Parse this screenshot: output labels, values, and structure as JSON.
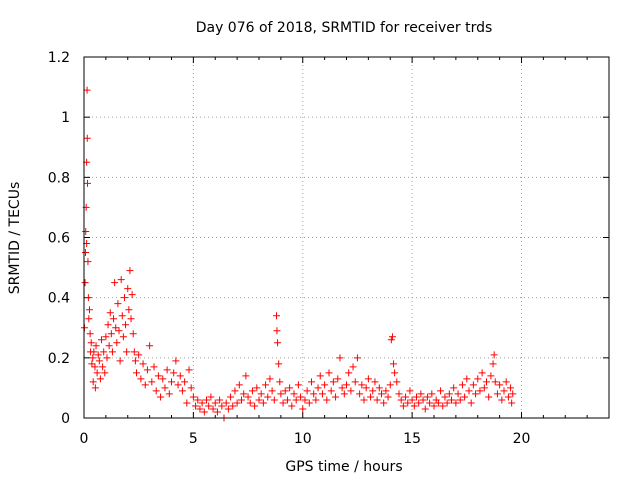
{
  "chart_data": {
    "type": "scatter",
    "title": "Day 076 of 2018, SRMTID for receiver trds",
    "xlabel": "GPS time / hours",
    "ylabel": "SRMTID / TECUs",
    "xlim": [
      0,
      24
    ],
    "ylim": [
      0,
      1.2
    ],
    "xticks": [
      0,
      5,
      10,
      15,
      20
    ],
    "xtick_labels": [
      "0",
      "5",
      "10",
      "15",
      "20"
    ],
    "yticks": [
      0,
      0.2,
      0.4,
      0.6,
      0.8,
      1.0,
      1.2
    ],
    "ytick_labels": [
      "0",
      "0.2",
      "0.4",
      "0.6",
      "0.8",
      "1",
      "1.2"
    ],
    "grid": true,
    "marker": "+",
    "color": "#ff0000",
    "series": [
      {
        "name": "SRMTID",
        "note": "representative subset of plotted points (estimated from the figure)",
        "points": [
          [
            0.02,
            0.3
          ],
          [
            0.05,
            0.45
          ],
          [
            0.07,
            0.55
          ],
          [
            0.08,
            0.62
          ],
          [
            0.1,
            0.7
          ],
          [
            0.12,
            0.85
          ],
          [
            0.12,
            0.58
          ],
          [
            0.14,
            1.09
          ],
          [
            0.15,
            0.93
          ],
          [
            0.16,
            0.78
          ],
          [
            0.18,
            0.52
          ],
          [
            0.2,
            0.4
          ],
          [
            0.22,
            0.33
          ],
          [
            0.25,
            0.36
          ],
          [
            0.28,
            0.28
          ],
          [
            0.3,
            0.22
          ],
          [
            0.33,
            0.25
          ],
          [
            0.36,
            0.18
          ],
          [
            0.4,
            0.2
          ],
          [
            0.42,
            0.12
          ],
          [
            0.45,
            0.22
          ],
          [
            0.5,
            0.17
          ],
          [
            0.52,
            0.1
          ],
          [
            0.55,
            0.24
          ],
          [
            0.6,
            0.15
          ],
          [
            0.65,
            0.21
          ],
          [
            0.7,
            0.19
          ],
          [
            0.75,
            0.13
          ],
          [
            0.8,
            0.26
          ],
          [
            0.85,
            0.17
          ],
          [
            0.9,
            0.22
          ],
          [
            0.95,
            0.15
          ],
          [
            1.0,
            0.27
          ],
          [
            1.05,
            0.2
          ],
          [
            1.1,
            0.31
          ],
          [
            1.15,
            0.24
          ],
          [
            1.2,
            0.35
          ],
          [
            1.25,
            0.28
          ],
          [
            1.3,
            0.22
          ],
          [
            1.35,
            0.33
          ],
          [
            1.4,
            0.45
          ],
          [
            1.45,
            0.3
          ],
          [
            1.5,
            0.25
          ],
          [
            1.55,
            0.38
          ],
          [
            1.6,
            0.29
          ],
          [
            1.65,
            0.19
          ],
          [
            1.7,
            0.46
          ],
          [
            1.75,
            0.34
          ],
          [
            1.8,
            0.27
          ],
          [
            1.85,
            0.4
          ],
          [
            1.9,
            0.31
          ],
          [
            1.95,
            0.22
          ],
          [
            2.0,
            0.43
          ],
          [
            2.05,
            0.36
          ],
          [
            2.1,
            0.49
          ],
          [
            2.15,
            0.33
          ],
          [
            2.2,
            0.41
          ],
          [
            2.25,
            0.28
          ],
          [
            2.3,
            0.22
          ],
          [
            2.35,
            0.19
          ],
          [
            2.4,
            0.15
          ],
          [
            2.5,
            0.21
          ],
          [
            2.6,
            0.13
          ],
          [
            2.7,
            0.18
          ],
          [
            2.8,
            0.11
          ],
          [
            2.9,
            0.16
          ],
          [
            3.0,
            0.24
          ],
          [
            3.1,
            0.12
          ],
          [
            3.2,
            0.17
          ],
          [
            3.3,
            0.09
          ],
          [
            3.4,
            0.14
          ],
          [
            3.5,
            0.07
          ],
          [
            3.6,
            0.13
          ],
          [
            3.7,
            0.1
          ],
          [
            3.8,
            0.16
          ],
          [
            3.9,
            0.08
          ],
          [
            4.0,
            0.12
          ],
          [
            4.1,
            0.15
          ],
          [
            4.2,
            0.19
          ],
          [
            4.3,
            0.11
          ],
          [
            4.4,
            0.14
          ],
          [
            4.5,
            0.09
          ],
          [
            4.6,
            0.12
          ],
          [
            4.7,
            0.05
          ],
          [
            4.8,
            0.16
          ],
          [
            4.9,
            0.1
          ],
          [
            5.0,
            0.07
          ],
          [
            5.1,
            0.04
          ],
          [
            5.2,
            0.06
          ],
          [
            5.3,
            0.03
          ],
          [
            5.4,
            0.05
          ],
          [
            5.5,
            0.02
          ],
          [
            5.6,
            0.06
          ],
          [
            5.7,
            0.04
          ],
          [
            5.8,
            0.07
          ],
          [
            5.9,
            0.03
          ],
          [
            6.0,
            0.05
          ],
          [
            6.1,
            0.02
          ],
          [
            6.2,
            0.06
          ],
          [
            6.3,
            0.04
          ],
          [
            6.4,
            0.0
          ],
          [
            6.5,
            0.05
          ],
          [
            6.6,
            0.03
          ],
          [
            6.7,
            0.07
          ],
          [
            6.8,
            0.04
          ],
          [
            6.9,
            0.09
          ],
          [
            7.0,
            0.05
          ],
          [
            7.1,
            0.11
          ],
          [
            7.2,
            0.06
          ],
          [
            7.3,
            0.08
          ],
          [
            7.4,
            0.14
          ],
          [
            7.5,
            0.07
          ],
          [
            7.6,
            0.05
          ],
          [
            7.7,
            0.09
          ],
          [
            7.8,
            0.04
          ],
          [
            7.9,
            0.1
          ],
          [
            8.0,
            0.06
          ],
          [
            8.1,
            0.08
          ],
          [
            8.2,
            0.05
          ],
          [
            8.3,
            0.11
          ],
          [
            8.4,
            0.07
          ],
          [
            8.5,
            0.13
          ],
          [
            8.6,
            0.09
          ],
          [
            8.7,
            0.06
          ],
          [
            8.8,
            0.34
          ],
          [
            8.82,
            0.29
          ],
          [
            8.85,
            0.25
          ],
          [
            8.9,
            0.18
          ],
          [
            8.95,
            0.12
          ],
          [
            9.0,
            0.08
          ],
          [
            9.1,
            0.05
          ],
          [
            9.2,
            0.09
          ],
          [
            9.3,
            0.06
          ],
          [
            9.4,
            0.1
          ],
          [
            9.5,
            0.04
          ],
          [
            9.6,
            0.08
          ],
          [
            9.7,
            0.06
          ],
          [
            9.8,
            0.11
          ],
          [
            9.9,
            0.07
          ],
          [
            10.0,
            0.03
          ],
          [
            10.1,
            0.06
          ],
          [
            10.2,
            0.09
          ],
          [
            10.3,
            0.05
          ],
          [
            10.4,
            0.12
          ],
          [
            10.5,
            0.08
          ],
          [
            10.6,
            0.06
          ],
          [
            10.7,
            0.1
          ],
          [
            10.8,
            0.14
          ],
          [
            10.9,
            0.08
          ],
          [
            11.0,
            0.11
          ],
          [
            11.1,
            0.06
          ],
          [
            11.2,
            0.15
          ],
          [
            11.3,
            0.09
          ],
          [
            11.4,
            0.12
          ],
          [
            11.5,
            0.07
          ],
          [
            11.6,
            0.13
          ],
          [
            11.7,
            0.2
          ],
          [
            11.8,
            0.1
          ],
          [
            11.9,
            0.08
          ],
          [
            12.0,
            0.11
          ],
          [
            12.1,
            0.15
          ],
          [
            12.2,
            0.09
          ],
          [
            12.3,
            0.17
          ],
          [
            12.4,
            0.12
          ],
          [
            12.5,
            0.2
          ],
          [
            12.6,
            0.08
          ],
          [
            12.7,
            0.11
          ],
          [
            12.8,
            0.06
          ],
          [
            12.9,
            0.1
          ],
          [
            13.0,
            0.13
          ],
          [
            13.1,
            0.07
          ],
          [
            13.2,
            0.09
          ],
          [
            13.3,
            0.12
          ],
          [
            13.4,
            0.06
          ],
          [
            13.5,
            0.1
          ],
          [
            13.6,
            0.08
          ],
          [
            13.7,
            0.05
          ],
          [
            13.8,
            0.09
          ],
          [
            13.9,
            0.07
          ],
          [
            14.0,
            0.11
          ],
          [
            14.05,
            0.26
          ],
          [
            14.1,
            0.27
          ],
          [
            14.15,
            0.18
          ],
          [
            14.2,
            0.15
          ],
          [
            14.3,
            0.12
          ],
          [
            14.4,
            0.08
          ],
          [
            14.5,
            0.06
          ],
          [
            14.6,
            0.04
          ],
          [
            14.7,
            0.07
          ],
          [
            14.8,
            0.05
          ],
          [
            14.9,
            0.09
          ],
          [
            15.0,
            0.06
          ],
          [
            15.1,
            0.04
          ],
          [
            15.2,
            0.07
          ],
          [
            15.3,
            0.05
          ],
          [
            15.4,
            0.08
          ],
          [
            15.5,
            0.06
          ],
          [
            15.6,
            0.03
          ],
          [
            15.7,
            0.07
          ],
          [
            15.8,
            0.05
          ],
          [
            15.9,
            0.08
          ],
          [
            16.0,
            0.04
          ],
          [
            16.1,
            0.06
          ],
          [
            16.2,
            0.05
          ],
          [
            16.3,
            0.09
          ],
          [
            16.4,
            0.04
          ],
          [
            16.5,
            0.07
          ],
          [
            16.6,
            0.05
          ],
          [
            16.7,
            0.08
          ],
          [
            16.8,
            0.06
          ],
          [
            16.9,
            0.1
          ],
          [
            17.0,
            0.05
          ],
          [
            17.1,
            0.08
          ],
          [
            17.2,
            0.06
          ],
          [
            17.3,
            0.11
          ],
          [
            17.4,
            0.07
          ],
          [
            17.5,
            0.13
          ],
          [
            17.6,
            0.09
          ],
          [
            17.7,
            0.05
          ],
          [
            17.8,
            0.11
          ],
          [
            17.9,
            0.08
          ],
          [
            18.0,
            0.13
          ],
          [
            18.1,
            0.09
          ],
          [
            18.2,
            0.15
          ],
          [
            18.3,
            0.1
          ],
          [
            18.4,
            0.12
          ],
          [
            18.5,
            0.07
          ],
          [
            18.6,
            0.14
          ],
          [
            18.7,
            0.18
          ],
          [
            18.75,
            0.21
          ],
          [
            18.8,
            0.12
          ],
          [
            18.9,
            0.08
          ],
          [
            19.0,
            0.11
          ],
          [
            19.1,
            0.06
          ],
          [
            19.2,
            0.09
          ],
          [
            19.3,
            0.12
          ],
          [
            19.4,
            0.07
          ],
          [
            19.5,
            0.1
          ],
          [
            19.55,
            0.05
          ],
          [
            19.6,
            0.08
          ]
        ]
      }
    ]
  }
}
